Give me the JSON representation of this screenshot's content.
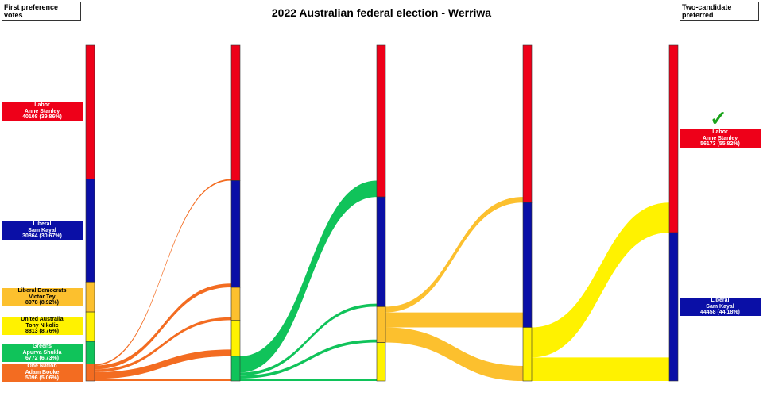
{
  "title": "2022 Australian federal election - Werriwa",
  "left_header": "First preference votes",
  "right_header": "Two-candidate preferred",
  "parties": [
    {
      "key": "labor",
      "party": "Labor",
      "name": "Anne Stanley",
      "votes_text": "40108 (39.86%)",
      "color": "#ee0019",
      "text_color": "#ffffff"
    },
    {
      "key": "liberal",
      "party": "Liberal",
      "name": "Sam Kayal",
      "votes_text": "30864 (30.67%)",
      "color": "#0a0fa6",
      "text_color": "#ffffff"
    },
    {
      "key": "ldp",
      "party": "Liberal Democrats",
      "name": "Victor Tey",
      "votes_text": "8978 (8.92%)",
      "color": "#fcc02e",
      "text_color": "#000000"
    },
    {
      "key": "uap",
      "party": "United Australia",
      "name": "Tony Nikolic",
      "votes_text": "8813 (8.76%)",
      "color": "#fff200",
      "text_color": "#000000"
    },
    {
      "key": "greens",
      "party": "Greens",
      "name": "Apurva Shukla",
      "votes_text": "6772 (6.73%)",
      "color": "#10c35a",
      "text_color": "#ffffff"
    },
    {
      "key": "on",
      "party": "One Nation",
      "name": "Adam Booke",
      "votes_text": "5096 (5.06%)",
      "color": "#f36c21",
      "text_color": "#ffffff"
    }
  ],
  "tcp": [
    {
      "key": "labor",
      "party": "Labor",
      "name": "Anne Stanley",
      "votes_text": "56173 (55.82%)",
      "color": "#ee0019",
      "winner": true,
      "winner_icon": "checkmark-icon"
    },
    {
      "key": "liberal",
      "party": "Liberal",
      "name": "Sam Kayal",
      "votes_text": "44458 (44.18%)",
      "color": "#0a0fa6",
      "winner": false
    }
  ],
  "chart_data": {
    "type": "sankey",
    "order": [
      "labor",
      "liberal",
      "ldp",
      "uap",
      "greens",
      "on"
    ],
    "columns": [
      {
        "labor": 40108,
        "liberal": 30864,
        "ldp": 8978,
        "uap": 8813,
        "greens": 6772,
        "on": 5096
      },
      {
        "labor": 40558,
        "liberal": 32014,
        "ldp": 9828,
        "uap": 10813,
        "greens": 7418
      },
      {
        "labor": 45458,
        "liberal": 32914,
        "ldp": 10728,
        "uap": 11531
      },
      {
        "labor": 47158,
        "liberal": 37414,
        "uap": 16059
      },
      {
        "labor": 56173,
        "liberal": 44458
      }
    ],
    "flows": [
      {
        "from": "on",
        "to": {
          "labor": 450,
          "liberal": 1150,
          "ldp": 850,
          "uap": 2000,
          "greens": 646
        }
      },
      {
        "from": "greens",
        "to": {
          "labor": 4900,
          "liberal": 900,
          "ldp": 900,
          "uap": 718
        }
      },
      {
        "from": "ldp",
        "to": {
          "labor": 1700,
          "liberal": 4500,
          "uap": 4528
        }
      },
      {
        "from": "uap",
        "to": {
          "labor": 9015,
          "liberal": 7044
        }
      }
    ]
  }
}
